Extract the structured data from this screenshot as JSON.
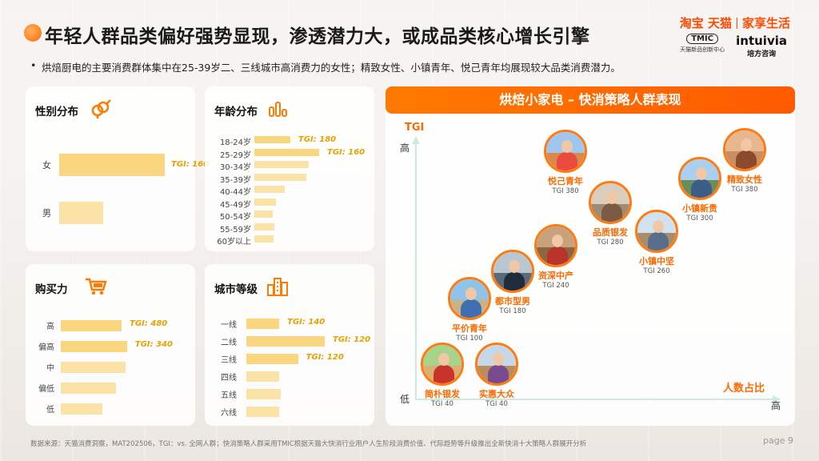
{
  "title": "年轻人群品类偏好强势显现，渗透潜力大，或成品类核心增长引擎",
  "logos": {
    "taobao": "淘宝 天猫",
    "home": "家享生活",
    "tmic": "TMIC",
    "tmic_sub": "天猫新品创新中心",
    "intuivia": "intuivia",
    "intuivia_sub": "培方咨询"
  },
  "bullet": "烘焙厨电的主要消费群体集中在25-39岁二、三线城市高消费力的女性；精致女性、小镇青年、悦己青年均展现较大品类消费潜力。",
  "gender": {
    "title": "性别分布",
    "icon": "gender-icon",
    "rows": [
      {
        "label": "女",
        "value": 1.0,
        "tgi": "TGI: 160"
      },
      {
        "label": "男",
        "value": 0.42,
        "tgi": ""
      }
    ]
  },
  "age": {
    "title": "年龄分布",
    "icon": "bar-chart-icon",
    "rows": [
      {
        "label": "18-24岁",
        "value": 0.5,
        "tgi": "TGI: 180"
      },
      {
        "label": "25-29岁",
        "value": 0.9,
        "tgi": "TGI: 160"
      },
      {
        "label": "30-34岁",
        "value": 0.76,
        "tgi": ""
      },
      {
        "label": "35-39岁",
        "value": 0.72,
        "tgi": ""
      },
      {
        "label": "40-44岁",
        "value": 0.42,
        "tgi": ""
      },
      {
        "label": "45-49岁",
        "value": 0.3,
        "tgi": ""
      },
      {
        "label": "50-54岁",
        "value": 0.25,
        "tgi": ""
      },
      {
        "label": "55-59岁",
        "value": 0.28,
        "tgi": ""
      },
      {
        "label": "60岁以上",
        "value": 0.27,
        "tgi": ""
      }
    ]
  },
  "power": {
    "title": "购买力",
    "icon": "shopping-cart-icon",
    "rows": [
      {
        "label": "高",
        "value": 0.68,
        "tgi": "TGI: 480"
      },
      {
        "label": "偏高",
        "value": 0.74,
        "tgi": "TGI: 340"
      },
      {
        "label": "中",
        "value": 0.72,
        "tgi": ""
      },
      {
        "label": "偏低",
        "value": 0.62,
        "tgi": ""
      },
      {
        "label": "低",
        "value": 0.46,
        "tgi": ""
      }
    ]
  },
  "city": {
    "title": "城市等级",
    "icon": "city-buildings-icon",
    "rows": [
      {
        "label": "一线",
        "value": 0.42,
        "tgi": "TGI: 140"
      },
      {
        "label": "二线",
        "value": 1.0,
        "tgi": "TGI: 120"
      },
      {
        "label": "三线",
        "value": 0.66,
        "tgi": "TGI: 120"
      },
      {
        "label": "四线",
        "value": 0.42,
        "tgi": ""
      },
      {
        "label": "五线",
        "value": 0.44,
        "tgi": ""
      },
      {
        "label": "六线",
        "value": 0.42,
        "tgi": ""
      }
    ]
  },
  "scatter": {
    "title": "烘焙小家电 – 快消策略人群表现",
    "y_axis_name": "TGI",
    "x_axis_name": "人数占比",
    "y_high": "高",
    "y_low": "低",
    "x_high": "高",
    "personas": [
      {
        "name": "悦己青年",
        "tgi": "TGI 380",
        "sky": "#9ec6ef",
        "ground": "#d98a4a",
        "body": "#e94b3c"
      },
      {
        "name": "精致女性",
        "tgi": "TGI 380",
        "sky": "#e7b890",
        "ground": "#c98f62",
        "body": "#8a4a2c"
      },
      {
        "name": "小镇新贵",
        "tgi": "TGI 300",
        "sky": "#a9d0f0",
        "ground": "#6a8d5a",
        "body": "#3a5e88"
      },
      {
        "name": "品质银发",
        "tgi": "TGI 280",
        "sky": "#d9cdbd",
        "ground": "#9f8a72",
        "body": "#7c5b44"
      },
      {
        "name": "小镇中坚",
        "tgi": "TGI 260",
        "sky": "#cfe2f2",
        "ground": "#a78d6a",
        "body": "#5a6e8c"
      },
      {
        "name": "资深中产",
        "tgi": "TGI 240",
        "sky": "#c7a27c",
        "ground": "#8e6542",
        "body": "#b8332a"
      },
      {
        "name": "都市型男",
        "tgi": "TGI 180",
        "sky": "#b9c7d3",
        "ground": "#5d6a77",
        "body": "#1f2c3c"
      },
      {
        "name": "平价青年",
        "tgi": "TGI 100",
        "sky": "#8fc3ea",
        "ground": "#c9b18a",
        "body": "#3f6fb0"
      },
      {
        "name": "简朴银发",
        "tgi": "TGI 40",
        "sky": "#a7d48a",
        "ground": "#d9b070",
        "body": "#c8342c"
      },
      {
        "name": "实惠大众",
        "tgi": "TGI 40",
        "sky": "#c6d8e8",
        "ground": "#b98d5c",
        "body": "#7a4a8e"
      }
    ]
  },
  "footer": "数据来源：天猫消费洞察，MAT202506，TGI：vs. 全网人群；快消策略人群采用TMIC根据天猫大快消行业用户人生阶段消费价值、代际趋势等升级推出全新快消十大策略人群展开分析",
  "page": "page 9"
}
